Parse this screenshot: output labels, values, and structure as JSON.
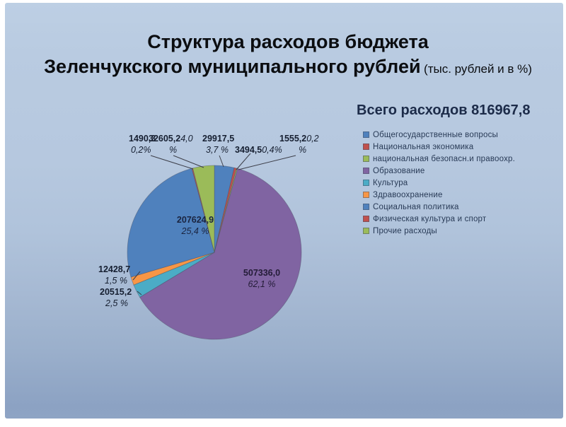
{
  "slide": {
    "title_line1": "Структура расходов бюджета",
    "title_line2": "Зеленчукского муниципального рублей",
    "title_line2_note": "(тыс. рублей и в %)"
  },
  "chart_data": {
    "type": "pie",
    "title": "Всего расходов 816967,8",
    "total": 816967.8,
    "legend_position": "right",
    "start_angle_deg": 0,
    "direction": "clockwise",
    "slices": [
      {
        "label": "Общегосударственные вопросы",
        "value": 29917.5,
        "value_text": "29917,5",
        "percent_text": "3,7 %",
        "color": "#4F81BD"
      },
      {
        "label": "Национальная экономика",
        "value": 3494.5,
        "value_text": "3494,5",
        "percent_text": "0,4%",
        "color": "#C0504D"
      },
      {
        "label": "национальная безопасн.и правоохр.",
        "value": 1555.2,
        "value_text": "1555,2",
        "percent_text": "0,2 %",
        "color": "#9BBB59"
      },
      {
        "label": "Образование",
        "value": 507336.0,
        "value_text": "507336,0",
        "percent_text": "62,1 %",
        "color": "#8064A2"
      },
      {
        "label": "Культура",
        "value": 20515.2,
        "value_text": "20515,2",
        "percent_text": "2,5 %",
        "color": "#4BACC6"
      },
      {
        "label": "Здравоохранение",
        "value": 12428.7,
        "value_text": "12428,7",
        "percent_text": "1,5 %",
        "color": "#F79646"
      },
      {
        "label": "Социальная политика",
        "value": 207624.9,
        "value_text": "207624,9",
        "percent_text": "25,4 %",
        "color": "#4F81BD"
      },
      {
        "label": "Физическая культура и спорт",
        "value": 1490.3,
        "value_text": "1490,3",
        "percent_text": "0,2%",
        "color": "#C0504D"
      },
      {
        "label": "Прочие расходы",
        "value": 32605.2,
        "value_text": "32605,2",
        "percent_text": "4,0 %",
        "color": "#9BBB59"
      }
    ]
  },
  "labels": {
    "fizkultura": {
      "value": "1490,3",
      "pct2": "0,2%"
    },
    "prochie": {
      "value": "32605,2",
      "pct1": "4,0",
      "pct2": "%"
    },
    "obshchegos": {
      "value": "29917,5",
      "pct2": "3,7 %"
    },
    "nac_ekonomika": {
      "value": "3494,5",
      "pct1": "0,4%"
    },
    "nac_bezop": {
      "value": "1555,2",
      "pct1": "0,2",
      "pct2": "%"
    },
    "zdrav": {
      "value": "12428,7",
      "pct2": "1,5 %"
    },
    "kultura": {
      "value": "20515,2",
      "pct2": "2,5 %"
    },
    "soc_politika": {
      "value": "207624,9",
      "pct2": "25,4 %"
    },
    "obrazovanie": {
      "value": "507336,0",
      "pct2": "62,1 %"
    }
  }
}
